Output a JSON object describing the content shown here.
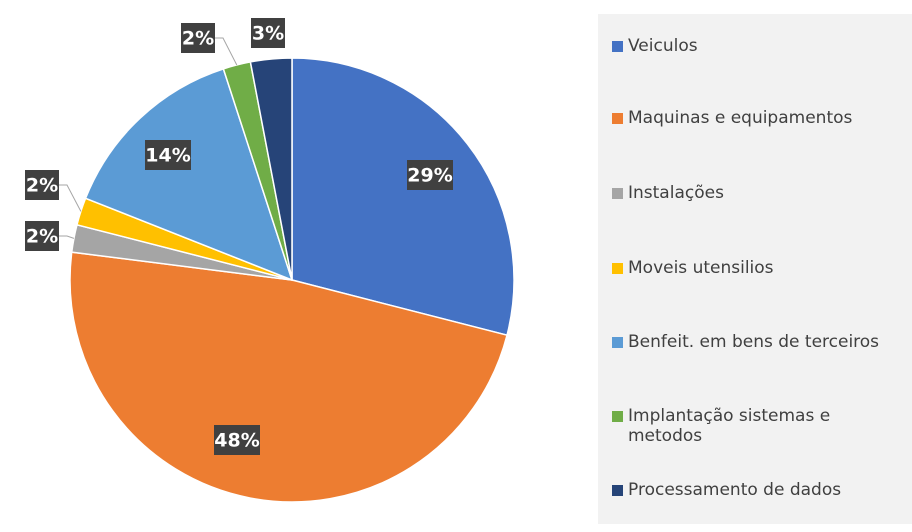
{
  "chart_data": {
    "type": "pie",
    "categories": [
      "Veiculos",
      "Maquinas e equipamentos",
      "Instalações",
      "Moveis  utensilios",
      "Benfeit. em bens de terceiros",
      "Implantação sistemas e metodos",
      "Processamento de dados"
    ],
    "values": [
      29,
      48,
      2,
      2,
      14,
      2,
      3
    ],
    "value_labels": [
      "29%",
      "48%",
      "2%",
      "2%",
      "14%",
      "2%",
      "3%"
    ],
    "colors": [
      "#4472c4",
      "#ed7d31",
      "#a5a5a5",
      "#ffc000",
      "#5b9bd5",
      "#70ad47",
      "#264478"
    ],
    "legend": "right"
  }
}
